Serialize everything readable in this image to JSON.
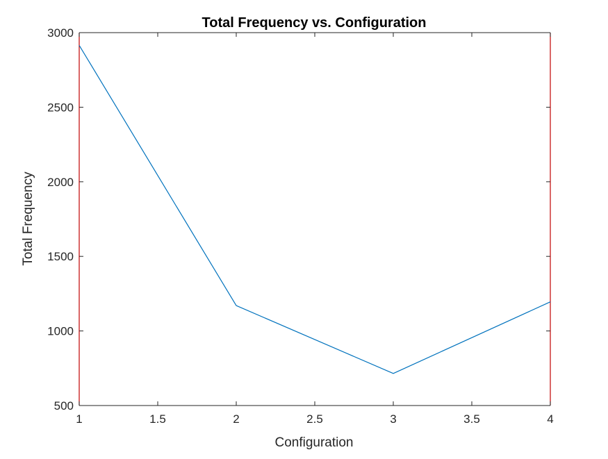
{
  "chart_data": {
    "type": "line",
    "title": "Total Frequency vs. Configuration",
    "xlabel": "Configuration",
    "ylabel": "Total Frequency",
    "xlim": [
      1,
      4
    ],
    "ylim": [
      500,
      3000
    ],
    "xticks": [
      1,
      1.5,
      2,
      2.5,
      3,
      3.5,
      4
    ],
    "xtick_labels": [
      "1",
      "1.5",
      "2",
      "2.5",
      "3",
      "3.5",
      "4"
    ],
    "yticks": [
      500,
      1000,
      1500,
      2000,
      2500,
      3000
    ],
    "ytick_labels": [
      "500",
      "1000",
      "1500",
      "2000",
      "2500",
      "3000"
    ],
    "grid": false,
    "legend": "none",
    "series": [
      {
        "x": [
          1,
          2,
          3,
          4
        ],
        "values": [
          2915,
          1170,
          715,
          1195
        ],
        "color": "#0072BD"
      }
    ],
    "axes_color": "#262626",
    "side_border_color": "#C00000"
  }
}
